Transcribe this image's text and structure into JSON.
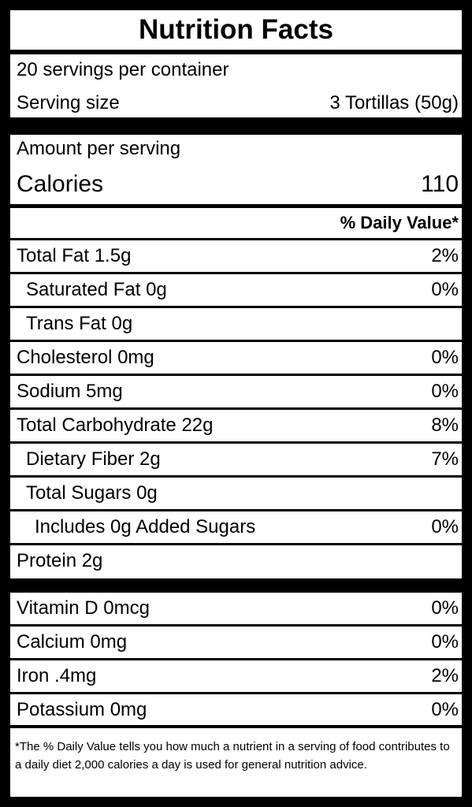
{
  "title": "Nutrition Facts",
  "servings_per_container": "20 servings per container",
  "serving_size_label": "Serving size",
  "serving_size_value": "3 Tortillas (50g)",
  "amount_per_serving": "Amount per serving",
  "calories_label": "Calories",
  "calories_value": "110",
  "daily_value_header": "% Daily Value*",
  "nutrients": [
    {
      "label": "Total Fat 1.5g",
      "dv": "2%"
    },
    {
      "label": "Saturated Fat 0g",
      "dv": "0%"
    },
    {
      "label": "Trans Fat 0g",
      "dv": ""
    },
    {
      "label": "Cholesterol 0mg",
      "dv": "0%"
    },
    {
      "label": "Sodium 5mg",
      "dv": "0%"
    },
    {
      "label": "Total Carbohydrate 22g",
      "dv": "8%"
    },
    {
      "label": "Dietary Fiber 2g",
      "dv": "7%"
    },
    {
      "label": "Total Sugars 0g",
      "dv": ""
    },
    {
      "label": "Includes 0g Added Sugars",
      "dv": "0%"
    },
    {
      "label": "Protein 2g",
      "dv": ""
    }
  ],
  "vitamins": [
    {
      "label": "Vitamin D 0mcg",
      "dv": "0%"
    },
    {
      "label": "Calcium 0mg",
      "dv": "0%"
    },
    {
      "label": "Iron .4mg",
      "dv": "2%"
    },
    {
      "label": "Potassium 0mg",
      "dv": "0%"
    }
  ],
  "footnote": "*The % Daily Value tells you how much a nutrient in a serving of food contributes to a daily diet 2,000 calories a day is used for general nutrition advice."
}
